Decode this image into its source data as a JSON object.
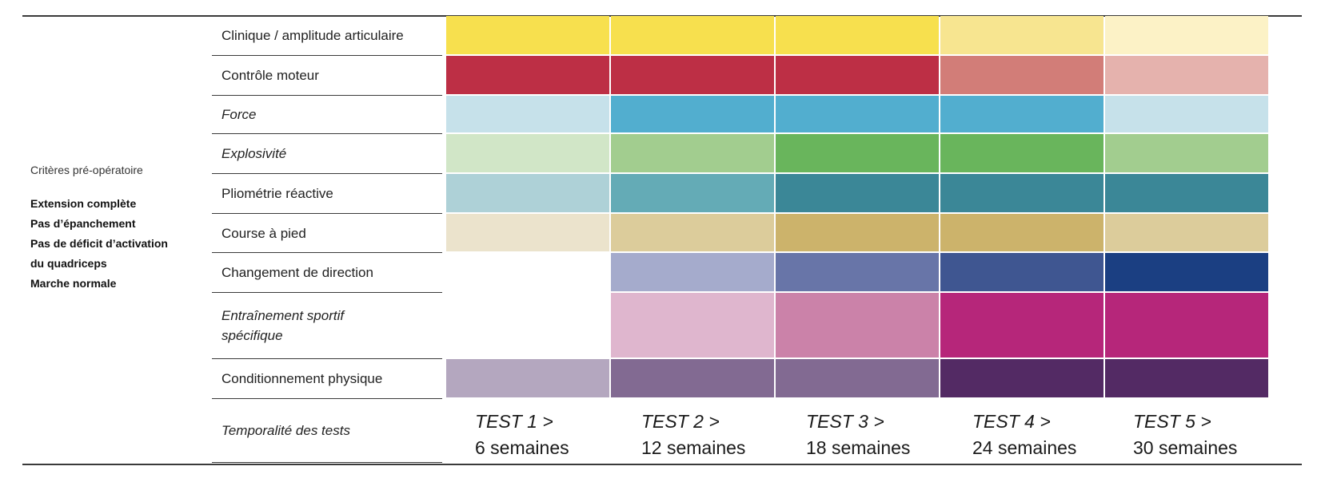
{
  "criteria": {
    "heading": "Critères pré-opératoire",
    "items": [
      "Extension complète",
      "Pas d’épanchement",
      "Pas de déficit d’activation",
      "du quadriceps",
      "Marche normale"
    ]
  },
  "rows": [
    {
      "label": "Clinique / amplitude articulaire",
      "colors": [
        "#f7e04e",
        "#f7e04e",
        "#f7e04e",
        "#f7e590",
        "#fcf2c6"
      ]
    },
    {
      "label": "Contrôle moteur",
      "colors": [
        "#bd2f45",
        "#bd2f45",
        "#bd2f45",
        "#d27d78",
        "#e5b2ad"
      ]
    },
    {
      "label": "Force",
      "colors": [
        "#c6e1ea",
        "#52aecf",
        "#52aecf",
        "#52aecf",
        "#c6e1ea"
      ]
    },
    {
      "label": "Explosivité",
      "colors": [
        "#d1e6c7",
        "#a2cd8f",
        "#69b55c",
        "#69b55c",
        "#a2cd8f"
      ]
    },
    {
      "label": "Pliométrie réactive",
      "colors": [
        "#aed1d7",
        "#64abb6",
        "#3b8797",
        "#3b8797",
        "#3b8797"
      ]
    },
    {
      "label": "Course à pied",
      "colors": [
        "#ebe3cc",
        "#dccc9b",
        "#ccb36b",
        "#ccb36b",
        "#dccc9b"
      ]
    },
    {
      "label": "Changement de direction",
      "colors": [
        null,
        "#a5abcc",
        "#6875a8",
        "#3f5691",
        "#1b3f82"
      ]
    },
    {
      "label": "Entraînement sportif spécifique",
      "colors": [
        null,
        "#dfb6ce",
        "#cb82a9",
        "#b6267a",
        "#b6267a"
      ]
    },
    {
      "label": "Conditionnement physique",
      "colors": [
        "#b4a7bf",
        "#826a92",
        "#826a92",
        "#532a64",
        "#532a64"
      ]
    }
  ],
  "timing_label": "Temporalité des tests",
  "tests": [
    {
      "name": "TEST 1 >",
      "duration": "6 semaines"
    },
    {
      "name": "TEST 2 >",
      "duration": "12 semaines"
    },
    {
      "name": "TEST 3 >",
      "duration": "18 semaines"
    },
    {
      "name": "TEST 4 >",
      "duration": "24 semaines"
    },
    {
      "name": "TEST 5 >",
      "duration": "30 semaines"
    }
  ]
}
